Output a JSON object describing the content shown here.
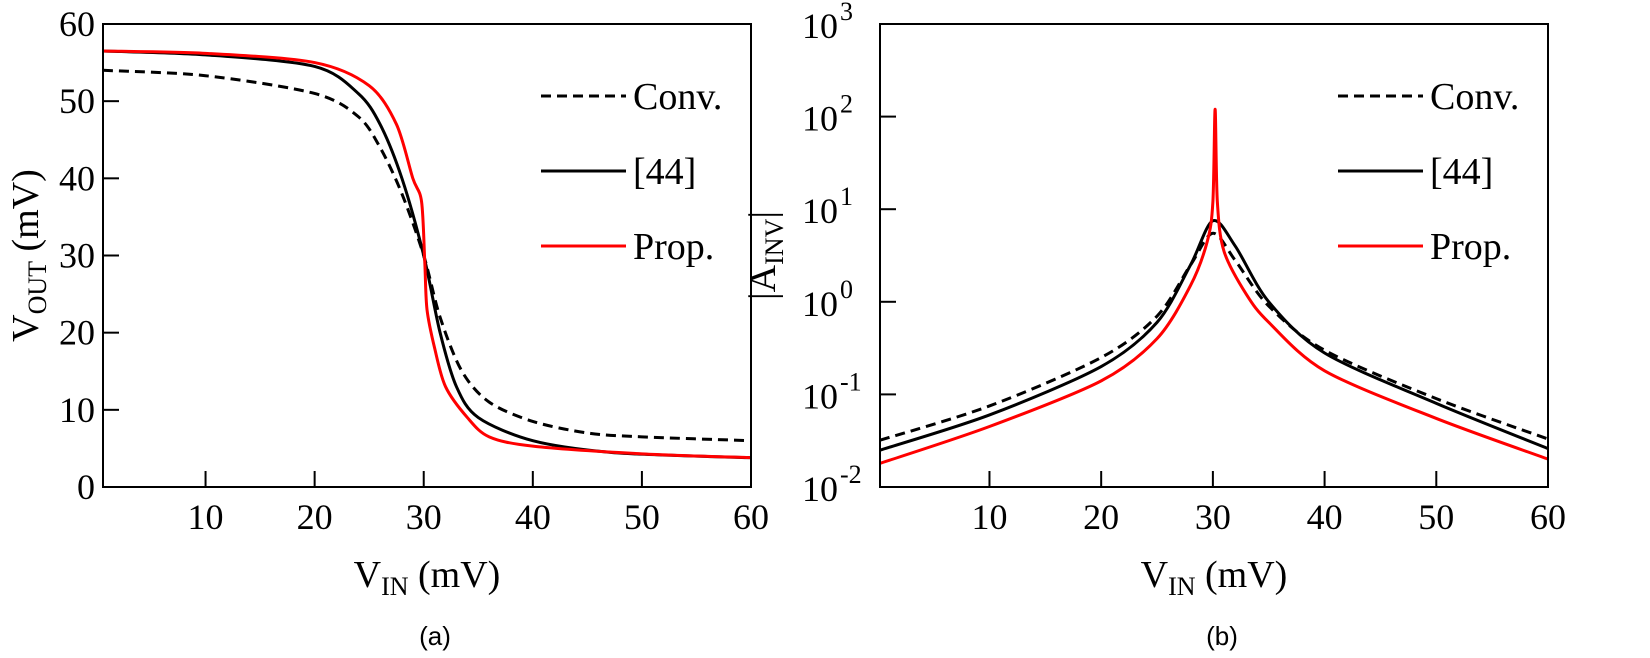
{
  "chart_data": [
    {
      "type": "line",
      "caption": "(a)",
      "xlabel": {
        "main": "V",
        "sub": "IN",
        "unit": " (mV)"
      },
      "ylabel": {
        "main": "V",
        "sub": "OUT",
        "unit": " (mV)"
      },
      "xlim": [
        0.6,
        60
      ],
      "ylim": [
        0,
        60
      ],
      "yscale": "linear",
      "xticks": [
        "10",
        "20",
        "30",
        "40",
        "50",
        "60"
      ],
      "yticks": [
        "0",
        "10",
        "20",
        "30",
        "40",
        "50",
        "60"
      ],
      "legend_position": "top-right",
      "series": [
        {
          "name": "Conv.",
          "style": "dashed",
          "color": "#000000",
          "x": [
            0.6,
            10,
            20,
            24,
            26,
            28,
            30,
            31.5,
            33.5,
            36,
            40,
            45,
            50,
            60
          ],
          "y": [
            54,
            53.3,
            51,
            48,
            44,
            38,
            30,
            22,
            15,
            11,
            8.5,
            7,
            6.5,
            6
          ]
        },
        {
          "name": "[44]",
          "style": "solid",
          "color": "#000000",
          "x": [
            0.6,
            10,
            20,
            24,
            26,
            28,
            30,
            31.5,
            33,
            35,
            40,
            47,
            55,
            60
          ],
          "y": [
            56.5,
            56,
            54.5,
            51,
            47,
            40,
            30,
            20,
            13,
            9,
            6,
            4.5,
            4,
            3.8
          ]
        },
        {
          "name": "Prop.",
          "style": "solid",
          "color": "#ff0000",
          "x": [
            0.6,
            10,
            20,
            25,
            27.5,
            29,
            29.8,
            30.1,
            30.3,
            31,
            32,
            34,
            36,
            40,
            50,
            60
          ],
          "y": [
            56.5,
            56.2,
            55,
            52,
            47,
            40,
            37,
            29,
            23,
            18,
            13,
            9,
            6.5,
            5.3,
            4.3,
            3.8
          ]
        }
      ]
    },
    {
      "type": "line",
      "caption": "(b)",
      "xlabel": {
        "main": "V",
        "sub": "IN",
        "unit": " (mV)"
      },
      "ylabel": {
        "main": "|A",
        "sub": "INV",
        "unit": "|"
      },
      "xlim": [
        0.2,
        60
      ],
      "ylim": [
        0.01,
        1000
      ],
      "yscale": "log",
      "xticks": [
        "10",
        "20",
        "30",
        "40",
        "50",
        "60"
      ],
      "yticks": [
        {
          "base": "10",
          "exp": "-2"
        },
        {
          "base": "10",
          "exp": "-1"
        },
        {
          "base": "10",
          "exp": "0"
        },
        {
          "base": "10",
          "exp": "1"
        },
        {
          "base": "10",
          "exp": "2"
        },
        {
          "base": "10",
          "exp": "3"
        }
      ],
      "legend_position": "top-right",
      "series": [
        {
          "name": "Conv.",
          "style": "dashed",
          "color": "#000000",
          "x": [
            0.2,
            10,
            20,
            25,
            28,
            30,
            32,
            35,
            40,
            50,
            60
          ],
          "y": [
            0.032,
            0.075,
            0.25,
            0.7,
            2.5,
            5.5,
            2.8,
            0.9,
            0.3,
            0.09,
            0.033
          ]
        },
        {
          "name": "[44]",
          "style": "solid",
          "color": "#000000",
          "x": [
            0.2,
            10,
            20,
            25,
            28,
            30,
            32,
            35,
            40,
            50,
            60
          ],
          "y": [
            0.025,
            0.06,
            0.2,
            0.6,
            2.5,
            7.5,
            4,
            1.0,
            0.28,
            0.08,
            0.026
          ]
        },
        {
          "name": "Prop.",
          "style": "solid",
          "color": "#ff0000",
          "x": [
            0.2,
            10,
            20,
            25,
            28,
            29.5,
            30,
            30.2,
            30.4,
            31,
            33,
            35,
            40,
            50,
            60
          ],
          "y": [
            0.018,
            0.045,
            0.14,
            0.4,
            1.5,
            4.5,
            12,
            120,
            12,
            3.5,
            1.2,
            0.6,
            0.18,
            0.055,
            0.02
          ]
        }
      ]
    }
  ]
}
